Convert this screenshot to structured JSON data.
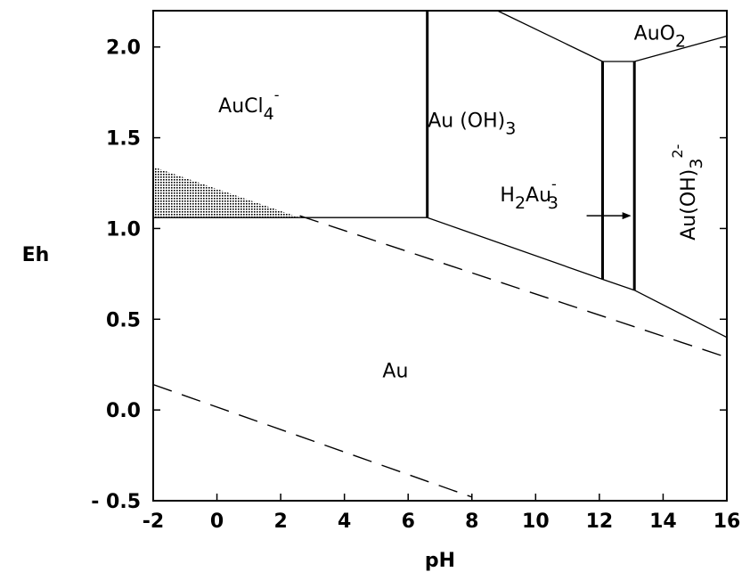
{
  "chart_data": {
    "type": "diagram",
    "xlabel": "pH",
    "ylabel": "Eh",
    "xlim": [
      -2,
      16
    ],
    "ylim": [
      -0.5,
      2.2
    ],
    "xticks": [
      -2,
      0,
      2,
      4,
      6,
      8,
      10,
      12,
      14,
      16
    ],
    "yticks": [
      -0.5,
      0.0,
      0.5,
      1.0,
      1.5,
      2.0
    ],
    "xtick_labels": [
      "-2",
      "0",
      "2",
      "4",
      "6",
      "8",
      "10",
      "12",
      "14",
      "16"
    ],
    "ytick_labels": [
      "- 0.5",
      "0.0",
      "0.5",
      "1.0",
      "1.5",
      "2.0"
    ],
    "grid": false,
    "boundaries": [
      {
        "name": "Au / AuCl4- (horizontal)",
        "points": [
          [
            -2,
            1.06
          ],
          [
            6.6,
            1.06
          ]
        ]
      },
      {
        "name": "AuCl4- / Au(OH)3 (vertical)",
        "points": [
          [
            6.6,
            1.06
          ],
          [
            6.6,
            2.2
          ]
        ]
      },
      {
        "name": "Au / Au(OH)3",
        "points": [
          [
            6.6,
            1.06
          ],
          [
            12.1,
            0.72
          ],
          [
            13.1,
            0.66
          ]
        ]
      },
      {
        "name": "Au / Au(OH)3 2- (upper)",
        "points": [
          [
            13.1,
            0.66
          ],
          [
            16,
            0.4
          ]
        ]
      },
      {
        "name": "Au(OH)3 / H2AuO3- left",
        "points": [
          [
            12.1,
            0.72
          ],
          [
            12.1,
            1.92
          ]
        ]
      },
      {
        "name": "H2AuO3- / Au(OH)3 2- right",
        "points": [
          [
            13.1,
            0.66
          ],
          [
            13.1,
            1.92
          ]
        ]
      },
      {
        "name": "Au(OH)3 / AuO2",
        "points": [
          [
            8.8,
            2.2
          ],
          [
            12.1,
            1.92
          ]
        ]
      },
      {
        "name": "H2AuO3- / AuO2",
        "points": [
          [
            12.1,
            1.92
          ],
          [
            13.1,
            1.92
          ]
        ]
      },
      {
        "name": "AuO2 / Au(OH)3 2-",
        "points": [
          [
            13.1,
            1.92
          ],
          [
            16,
            2.06
          ]
        ]
      }
    ],
    "water_lines": [
      {
        "name": "O2/H2O upper stability limit",
        "points": [
          [
            2.6,
            1.07
          ],
          [
            16,
            0.29
          ]
        ]
      },
      {
        "name": "H2O/H2 lower stability limit",
        "points": [
          [
            -2,
            0.14
          ],
          [
            8,
            -0.48
          ]
        ]
      }
    ],
    "shaded_region": {
      "points": [
        [
          -2,
          1.34
        ],
        [
          -2,
          1.06
        ],
        [
          2.6,
          1.06
        ]
      ]
    },
    "region_labels": [
      {
        "base": "Au",
        "text": "AuCl",
        "sub": "4",
        "sup": "-",
        "x": 1.0,
        "y": 1.64
      },
      {
        "text": "Au (OH)",
        "sub": "3",
        "x": 8.0,
        "y": 1.56
      },
      {
        "text": "AuO",
        "sub": "2",
        "x": 13.9,
        "y": 2.04
      },
      {
        "text": "H",
        "sub": "2",
        "tail": "Au",
        "sub2": "3",
        "sup": "-",
        "x": 9.8,
        "y": 1.15
      },
      {
        "text": "Au(OH)",
        "sub": "3",
        "sup": "2-",
        "x": 15.0,
        "y": 1.2,
        "rotate": -90
      },
      {
        "text": "Au",
        "x": 5.6,
        "y": 0.18
      }
    ],
    "arrow": {
      "from": [
        11.6,
        1.07
      ],
      "to": [
        13.0,
        1.07
      ]
    }
  }
}
